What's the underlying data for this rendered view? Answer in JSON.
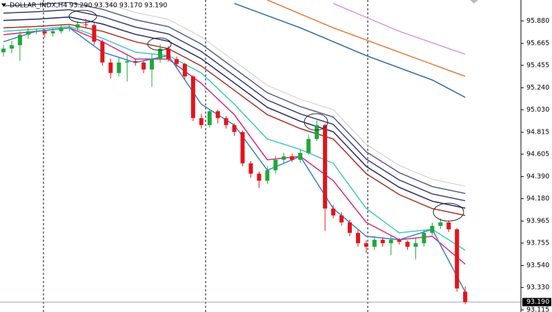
{
  "chart_data": {
    "type": "candlestick",
    "title": "DOLLAR_INDX,H4  93.290 93.340 93.170 93.190",
    "ylim": [
      93.095,
      96.08
    ],
    "yticks": [
      {
        "value": 95.88,
        "label": "95.880"
      },
      95.665,
      95.455,
      {
        "value": 95.24,
        "label": "95.240"
      },
      {
        "value": 95.03,
        "label": "95.030"
      },
      94.815,
      94.605,
      {
        "value": 94.39,
        "label": "94.390"
      },
      {
        "value": 94.18,
        "label": "94.180"
      },
      93.965,
      93.755,
      {
        "value": 93.54,
        "label": "93.540"
      },
      {
        "value": 93.33,
        "label": "93.330"
      },
      93.115
    ],
    "up_color": "#1fa83a",
    "down_color": "#e3141b",
    "open": [
      95.58,
      95.615,
      95.648,
      95.748,
      95.781,
      95.781,
      95.761,
      95.781,
      95.814,
      95.814,
      95.847,
      95.84,
      95.681,
      95.482,
      95.382,
      95.482,
      95.495,
      95.482,
      95.415,
      95.515,
      95.615,
      95.515,
      95.468,
      95.349,
      94.95,
      94.883,
      95.016,
      94.95,
      94.883,
      94.817,
      94.517,
      94.418,
      94.351,
      94.451,
      94.551,
      94.584,
      94.551,
      94.617,
      94.75,
      94.883,
      94.085,
      94.019,
      93.952,
      93.852,
      93.753,
      93.719,
      93.786,
      93.753,
      93.786,
      93.766,
      93.719,
      93.753,
      93.852,
      93.919,
      93.952,
      93.886,
      93.29
    ],
    "high": [
      95.65,
      95.69,
      95.78,
      95.81,
      95.805,
      95.8,
      95.81,
      95.84,
      95.845,
      95.88,
      95.9,
      95.86,
      95.7,
      95.52,
      95.53,
      95.56,
      95.52,
      95.5,
      95.56,
      95.66,
      95.64,
      95.54,
      95.48,
      95.36,
      94.99,
      95.04,
      95.03,
      94.97,
      94.9,
      94.83,
      94.54,
      94.44,
      94.49,
      94.59,
      94.62,
      94.61,
      94.65,
      94.79,
      94.93,
      94.9,
      94.12,
      94.05,
      93.98,
      93.88,
      93.78,
      93.82,
      93.81,
      93.83,
      93.8,
      93.78,
      93.8,
      93.88,
      93.95,
      93.99,
      93.97,
      93.9,
      93.34
    ],
    "low": [
      95.54,
      95.57,
      95.5,
      95.71,
      95.75,
      95.72,
      95.73,
      95.76,
      95.78,
      95.79,
      95.81,
      95.65,
      95.45,
      95.33,
      95.35,
      95.3,
      95.45,
      95.38,
      95.25,
      95.48,
      95.49,
      95.44,
      95.32,
      94.92,
      94.85,
      94.86,
      94.9,
      94.85,
      94.78,
      94.49,
      94.38,
      94.28,
      94.32,
      94.42,
      94.52,
      94.53,
      94.52,
      94.6,
      94.73,
      93.87,
      93.99,
      93.92,
      93.82,
      93.72,
      93.66,
      93.69,
      93.72,
      93.64,
      93.74,
      93.69,
      93.6,
      93.72,
      93.83,
      93.89,
      93.86,
      93.29,
      93.17
    ],
    "close": [
      95.615,
      95.648,
      95.748,
      95.781,
      95.781,
      95.761,
      95.781,
      95.814,
      95.814,
      95.847,
      95.84,
      95.681,
      95.482,
      95.382,
      95.482,
      95.495,
      95.482,
      95.415,
      95.515,
      95.615,
      95.515,
      95.468,
      95.349,
      94.95,
      94.883,
      95.016,
      94.95,
      94.883,
      94.817,
      94.517,
      94.418,
      94.351,
      94.451,
      94.551,
      94.584,
      94.551,
      94.617,
      94.75,
      94.883,
      94.085,
      94.019,
      93.952,
      93.852,
      93.753,
      93.719,
      93.786,
      93.753,
      93.786,
      93.766,
      93.719,
      93.753,
      93.852,
      93.919,
      93.952,
      93.886,
      93.32,
      93.19
    ],
    "lines": [
      {
        "color": "#c9c9c9",
        "x": [
          12,
          16,
          20,
          24,
          28,
          32,
          36,
          40,
          44,
          48,
          52,
          56
        ],
        "values": [
          96.061,
          95.961,
          95.895,
          95.728,
          95.496,
          95.263,
          95.13,
          95.03,
          94.698,
          94.498,
          94.365,
          94.299
        ]
      },
      {
        "color": "#5a5f8e",
        "x": [
          0,
          4,
          8,
          12,
          16,
          20,
          24,
          28,
          32,
          36,
          40,
          44,
          48,
          52,
          56
        ],
        "values": [
          96.024,
          96.037,
          96.057,
          95.991,
          95.891,
          95.825,
          95.658,
          95.426,
          95.193,
          95.06,
          94.96,
          94.628,
          94.428,
          94.295,
          94.229
        ]
      },
      {
        "color": "#3e447e",
        "x": [
          0,
          4,
          8,
          12,
          16,
          20,
          24,
          28,
          32,
          36,
          40,
          44,
          48,
          52,
          56
        ],
        "values": [
          95.954,
          95.967,
          95.987,
          95.921,
          95.821,
          95.755,
          95.588,
          95.356,
          95.123,
          94.99,
          94.89,
          94.558,
          94.358,
          94.225,
          94.159
        ]
      },
      {
        "color": "#2c2f6e",
        "x": [
          0,
          4,
          8,
          12,
          16,
          20,
          24,
          28,
          32,
          36,
          40,
          44,
          48,
          52,
          56
        ],
        "values": [
          95.884,
          95.897,
          95.917,
          95.851,
          95.751,
          95.685,
          95.518,
          95.286,
          95.053,
          94.92,
          94.82,
          94.488,
          94.288,
          94.155,
          94.089
        ]
      },
      {
        "color": "#a8392c",
        "x": [
          0,
          4,
          8,
          12,
          16,
          20,
          24,
          28,
          32,
          36,
          40,
          44,
          48,
          52,
          56
        ],
        "values": [
          95.814,
          95.827,
          95.847,
          95.781,
          95.681,
          95.615,
          95.448,
          95.216,
          94.983,
          94.85,
          94.75,
          94.418,
          94.218,
          94.085,
          94.019
        ]
      },
      {
        "color": "#48c9c0",
        "x": [
          0,
          4,
          8,
          12,
          16,
          20,
          24,
          28,
          32,
          36,
          40,
          44,
          48,
          52,
          56
        ],
        "values": [
          95.781,
          95.801,
          95.827,
          95.714,
          95.581,
          95.548,
          95.382,
          95.083,
          94.75,
          94.65,
          94.517,
          94.085,
          93.852,
          93.886,
          93.686
        ]
      },
      {
        "color": "#d62f86",
        "x": [
          0,
          4,
          8,
          12,
          16,
          20,
          24,
          28,
          32,
          36,
          40,
          44,
          48,
          52,
          56
        ],
        "values": [
          95.748,
          95.781,
          95.814,
          95.681,
          95.515,
          95.515,
          95.282,
          94.983,
          94.551,
          94.584,
          94.351,
          93.952,
          93.786,
          93.819,
          93.553
        ]
      },
      {
        "color": "#3b82d6",
        "x": [
          0,
          4,
          8,
          12,
          16,
          20,
          24,
          28,
          32,
          36,
          40,
          44,
          48,
          52,
          56
        ],
        "values": [
          95.681,
          95.781,
          95.814,
          95.581,
          95.482,
          95.548,
          95.083,
          94.883,
          94.451,
          94.584,
          94.085,
          93.819,
          93.786,
          93.886,
          93.287
        ]
      },
      {
        "color": "#2f6ea3",
        "x": [
          28,
          36,
          44,
          52,
          56
        ],
        "values": [
          96.047,
          95.814,
          95.548,
          95.315,
          95.149
        ]
      },
      {
        "color": "#e67e3c",
        "x": [
          32,
          40,
          48,
          56
        ],
        "values": [
          96.08,
          95.814,
          95.581,
          95.349
        ]
      },
      {
        "color": "#d99ada",
        "x": [
          40,
          48,
          56
        ],
        "values": [
          96.047,
          95.781,
          95.561
        ]
      }
    ],
    "last_price": {
      "value": 93.19,
      "label": "93.190"
    }
  }
}
